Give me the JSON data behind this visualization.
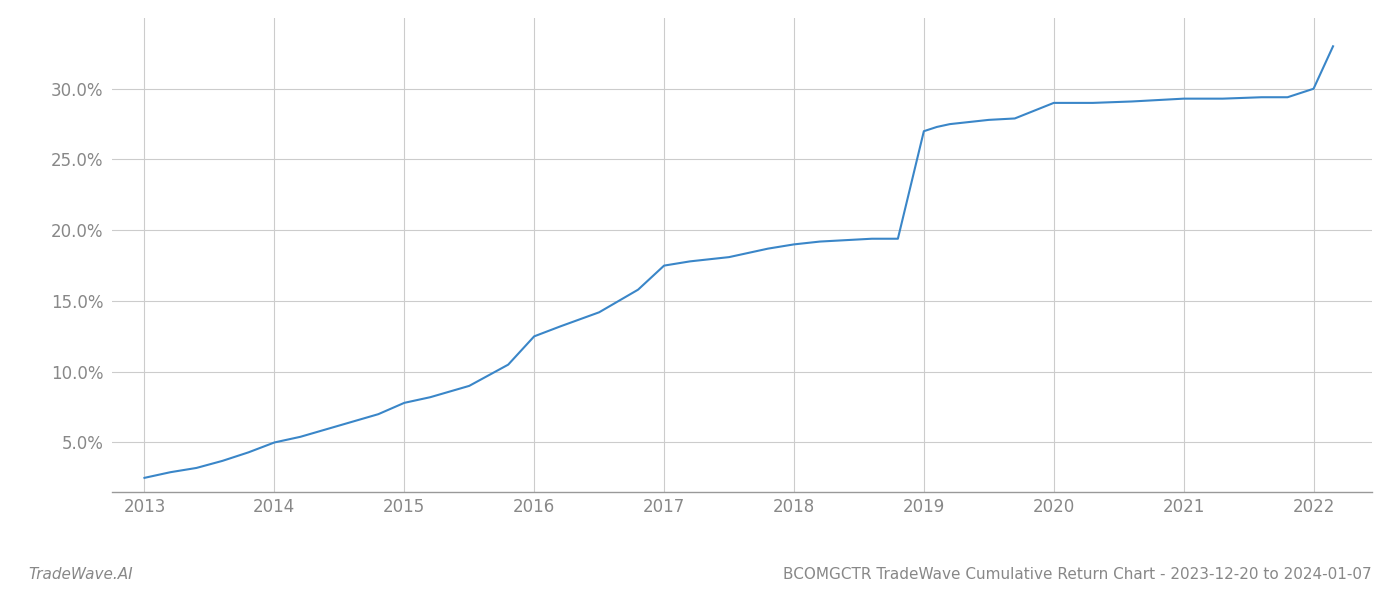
{
  "x_years": [
    2013.0,
    2013.1,
    2013.2,
    2013.4,
    2013.6,
    2013.8,
    2014.0,
    2014.2,
    2014.5,
    2014.8,
    2015.0,
    2015.2,
    2015.5,
    2015.8,
    2016.0,
    2016.2,
    2016.5,
    2016.8,
    2017.0,
    2017.2,
    2017.5,
    2017.8,
    2018.0,
    2018.1,
    2018.2,
    2018.4,
    2018.6,
    2018.8,
    2019.0,
    2019.1,
    2019.2,
    2019.4,
    2019.5,
    2019.7,
    2020.0,
    2020.3,
    2020.6,
    2021.0,
    2021.3,
    2021.6,
    2021.8,
    2022.0,
    2022.15
  ],
  "y_values": [
    2.5,
    2.7,
    2.9,
    3.2,
    3.7,
    4.3,
    5.0,
    5.4,
    6.2,
    7.0,
    7.8,
    8.2,
    9.0,
    10.5,
    12.5,
    13.2,
    14.2,
    15.8,
    17.5,
    17.8,
    18.1,
    18.7,
    19.0,
    19.1,
    19.2,
    19.3,
    19.4,
    19.4,
    27.0,
    27.3,
    27.5,
    27.7,
    27.8,
    27.9,
    29.0,
    29.0,
    29.1,
    29.3,
    29.3,
    29.4,
    29.4,
    30.0,
    33.0
  ],
  "line_color": "#3a86c8",
  "line_width": 1.5,
  "background_color": "#ffffff",
  "grid_color": "#cccccc",
  "x_ticks": [
    2013,
    2014,
    2015,
    2016,
    2017,
    2018,
    2019,
    2020,
    2021,
    2022
  ],
  "y_ticks": [
    5.0,
    10.0,
    15.0,
    20.0,
    25.0,
    30.0
  ],
  "y_tick_labels": [
    "5.0%",
    "10.0%",
    "15.0%",
    "20.0%",
    "25.0%",
    "30.0%"
  ],
  "ylim": [
    1.5,
    35.0
  ],
  "xlim": [
    2012.75,
    2022.45
  ],
  "footer_left": "TradeWave.AI",
  "footer_right": "BCOMGCTR TradeWave Cumulative Return Chart - 2023-12-20 to 2024-01-07",
  "footer_fontsize": 11,
  "tick_fontsize": 12,
  "spine_color": "#999999"
}
